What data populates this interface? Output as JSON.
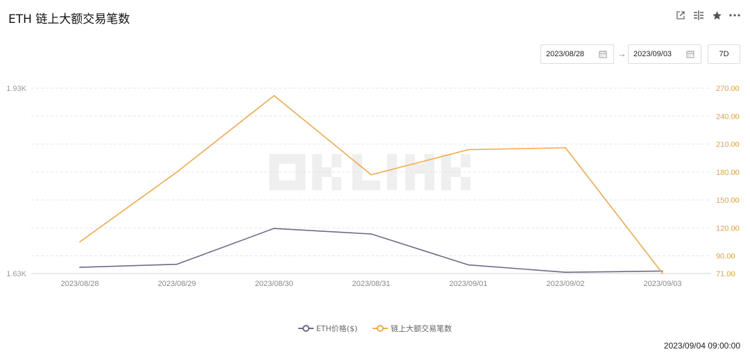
{
  "header": {
    "title": "ETH 链上大额交易笔数",
    "icons": [
      "share-icon",
      "compare-icon",
      "star-icon",
      "more-icon"
    ]
  },
  "controls": {
    "start_date": "2023/08/28",
    "end_date": "2023/09/03",
    "range_label": "7D"
  },
  "timestamp": "2023/09/04 09:00:00",
  "colors": {
    "price": "#6b6b85",
    "count": "#f7a94a",
    "grid": "#e6e6e6",
    "left_tick": "#999999",
    "right_tick": "#f0a040"
  },
  "chart_data": {
    "type": "line",
    "categories": [
      "2023/08/28",
      "2023/08/29",
      "2023/08/30",
      "2023/08/31",
      "2023/09/01",
      "2023/09/02",
      "2023/09/03"
    ],
    "series": [
      {
        "name": "ETH价格($)",
        "axis": "left",
        "values": [
          1640,
          1645,
          1703,
          1694,
          1644,
          1632,
          1634
        ]
      },
      {
        "name": "链上大额交易笔数",
        "axis": "right",
        "values": [
          105,
          180,
          262,
          177,
          204,
          206,
          71
        ]
      }
    ],
    "left_axis": {
      "ticks": [
        "1.93K",
        "1.63K"
      ],
      "range": [
        1630,
        1930
      ]
    },
    "right_axis": {
      "ticks": [
        "270.00",
        "240.00",
        "210.00",
        "180.00",
        "150.00",
        "120.00",
        "90.00",
        "71.00"
      ],
      "range": [
        71,
        270
      ]
    },
    "grid": true,
    "legend": "bottom-center"
  }
}
